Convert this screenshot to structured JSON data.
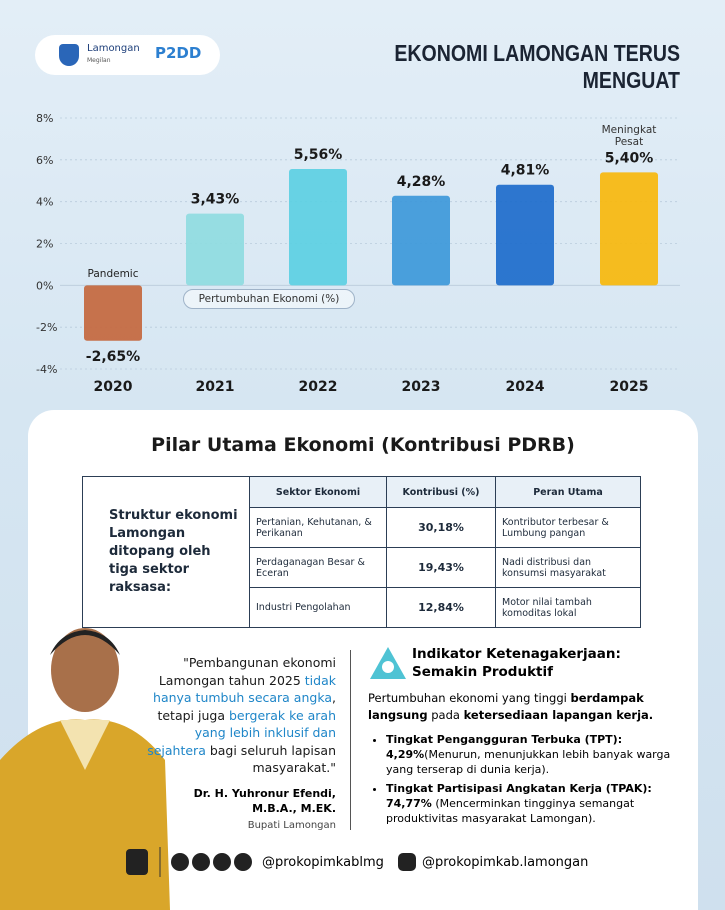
{
  "header": {
    "logo_text": "Lamongan",
    "logo_subtext": "Megilan",
    "logo_badge": "P2DD",
    "title": "EKONOMI LAMONGAN TERUS MENGUAT"
  },
  "chart_data": {
    "type": "bar",
    "categories": [
      "2020",
      "2021",
      "2022",
      "2023",
      "2024",
      "2025"
    ],
    "values": [
      -2.65,
      3.43,
      5.56,
      4.28,
      4.81,
      5.4
    ],
    "value_labels": [
      "-2,65%",
      "3,43%",
      "5,56%",
      "4,28%",
      "4,81%",
      "5,40%"
    ],
    "colors": [
      "#c4673e",
      "#8fdbe0",
      "#5ccfe2",
      "#3d98d9",
      "#1d6bcb",
      "#f7b70c"
    ],
    "ylim": [
      -4,
      8
    ],
    "yticks": [
      {
        "value": -4,
        "label": "-4%"
      },
      {
        "value": -2,
        "label": "-2%"
      },
      {
        "value": 0,
        "label": "0%"
      },
      {
        "value": 2,
        "label": "2%"
      },
      {
        "value": 4,
        "label": "4%"
      },
      {
        "value": 6,
        "label": "6%"
      },
      {
        "value": 8,
        "label": "8%"
      }
    ],
    "grid": true,
    "annotations": [
      "Pandemic",
      "Pertumbuhan Ekonomi (%)",
      "Meningkat Pesat"
    ]
  },
  "section_title": "Pilar Utama Ekonomi (Kontribusi PDRB)",
  "table": {
    "intro": "Struktur ekonomi Lamongan ditopang oleh tiga sektor raksasa:",
    "columns": [
      "Sektor Ekonomi",
      "Kontribusi (%)",
      "Peran Utama"
    ],
    "rows": [
      [
        "Pertanian, Kehutanan, & Perikanan",
        "30,18%",
        "Kontributor terbesar & Lumbung pangan"
      ],
      [
        "Perdaganagan Besar & Eceran",
        "19,43%",
        "Nadi distribusi dan konsumsi masyarakat"
      ],
      [
        "Industri Pengolahan",
        "12,84%",
        "Motor nilai tambah komoditas lokal"
      ]
    ]
  },
  "quote": {
    "segments": [
      "\"Pembangunan ekonomi Lamongan tahun 2025 ",
      "tidak hanya tumbuh secara angka",
      ", tetapi juga ",
      "bergerak ke arah yang lebih inklusif dan sejahtera",
      " bagi seluruh lapisan masyarakat.\""
    ],
    "author": "Dr. H. Yuhronur Efendi, M.B.A., M.EK.",
    "role": "Bupati Lamongan"
  },
  "indicator": {
    "title": "Indikator Ketenagakerjaan: Semakin Produktif",
    "intro": [
      "Pertumbuhan ekonomi yang tinggi ",
      "berdampak langsung",
      " pada ",
      "ketersediaan lapangan kerja."
    ],
    "items": [
      {
        "label": "Tingkat Pengangguran Terbuka (TPT):",
        "value": "4,29%",
        "note": "(Menurun, menunjukkan lebih banyak warga yang terserap di dunia kerja)."
      },
      {
        "label": "Tingkat Partisipasi Angkatan Kerja (TPAK):",
        "value": "74,77%",
        "note": " (Mencerminkan tingginya semangat produktivitas masyarakat Lamongan)."
      }
    ]
  },
  "footer": {
    "handles": [
      "@prokopimkablmg",
      "@prokopimkab.lamongan"
    ]
  }
}
